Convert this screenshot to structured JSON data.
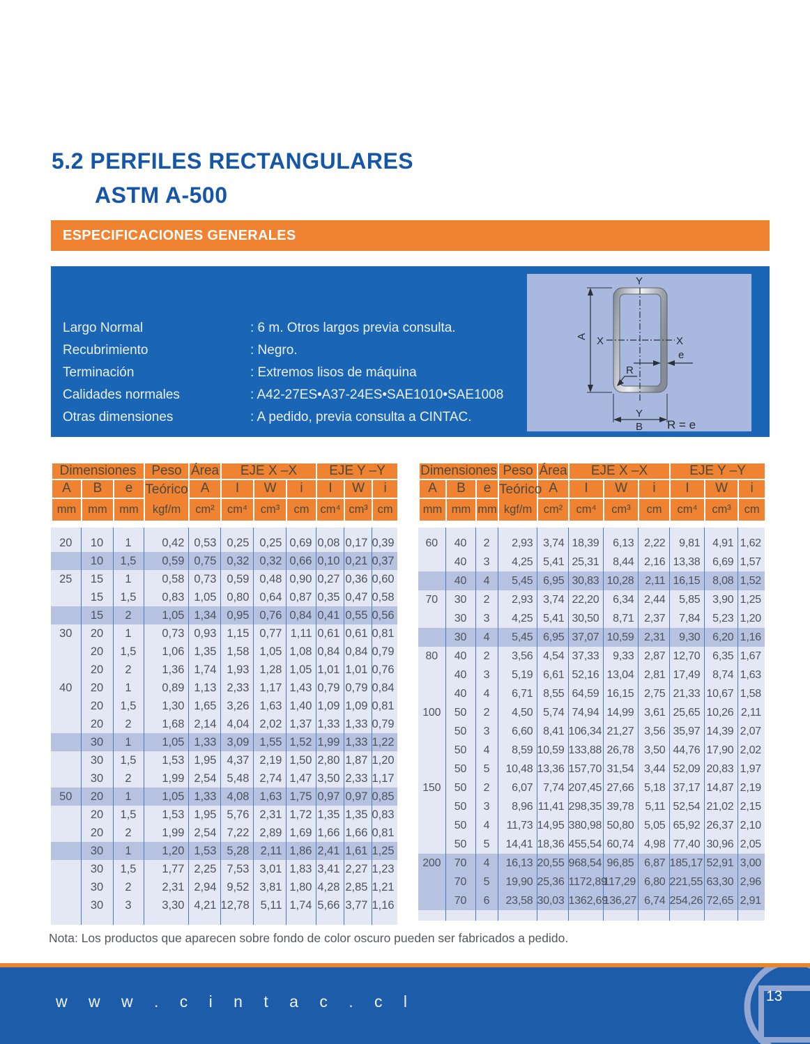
{
  "header": {
    "title_line1": "5.2 PERFILES RECTANGULARES",
    "title_line2": "ASTM A-500",
    "banner": "ESPECIFICACIONES GENERALES"
  },
  "specs": [
    {
      "label": "Largo Normal",
      "value": ": 6 m. Otros largos previa consulta."
    },
    {
      "label": "Recubrimiento",
      "value": ": Negro."
    },
    {
      "label": "Terminación",
      "value": ": Extremos lisos de  máquina"
    },
    {
      "label": "Calidades normales",
      "value": ": A42-27ES•A37-24ES•SAE1010•SAE1008"
    },
    {
      "label": "Otras dimensiones",
      "value": ": A pedido, previa consulta a CINTAC."
    }
  ],
  "diagram": {
    "label_a": "A",
    "label_b": "B",
    "label_e": "e",
    "label_r": "R",
    "label_x_left": "X",
    "label_x_right": "X",
    "label_y_top": "Y",
    "label_y_bottom": "Y",
    "formula": "R = e"
  },
  "tables": {
    "header": {
      "dimensiones": "Dimensiones",
      "peso": "Peso",
      "teorico": "Teórico",
      "area": "Área",
      "eje_x": "EJE X –X",
      "eje_y": "EJE Y –Y",
      "a": "A",
      "b": "B",
      "e": "e",
      "i_major": "I",
      "w": "W",
      "i_minor": "i",
      "mm": "mm",
      "kgf_m": "kgf/m",
      "cm2": "cm²",
      "cm4": "cm⁴",
      "cm3": "cm³",
      "cm": "cm"
    },
    "left": {
      "highlighted": [
        1,
        4,
        11,
        14,
        17
      ],
      "rows": [
        [
          "20",
          "10",
          "1",
          "0,42",
          "0,53",
          "0,25",
          "0,25",
          "0,69",
          "0,08",
          "0,17",
          "0,39"
        ],
        [
          "",
          "10",
          "1,5",
          "0,59",
          "0,75",
          "0,32",
          "0,32",
          "0,66",
          "0,10",
          "0,21",
          "0,37"
        ],
        [
          "25",
          "15",
          "1",
          "0,58",
          "0,73",
          "0,59",
          "0,48",
          "0,90",
          "0,27",
          "0,36",
          "0,60"
        ],
        [
          "",
          "15",
          "1,5",
          "0,83",
          "1,05",
          "0,80",
          "0,64",
          "0,87",
          "0,35",
          "0,47",
          "0,58"
        ],
        [
          "",
          "15",
          "2",
          "1,05",
          "1,34",
          "0,95",
          "0,76",
          "0,84",
          "0,41",
          "0,55",
          "0,56"
        ],
        [
          "30",
          "20",
          "1",
          "0,73",
          "0,93",
          "1,15",
          "0,77",
          "1,11",
          "0,61",
          "0,61",
          "0,81"
        ],
        [
          "",
          "20",
          "1,5",
          "1,06",
          "1,35",
          "1,58",
          "1,05",
          "1,08",
          "0,84",
          "0,84",
          "0,79"
        ],
        [
          "",
          "20",
          "2",
          "1,36",
          "1,74",
          "1,93",
          "1,28",
          "1,05",
          "1,01",
          "1,01",
          "0,76"
        ],
        [
          "40",
          "20",
          "1",
          "0,89",
          "1,13",
          "2,33",
          "1,17",
          "1,43",
          "0,79",
          "0,79",
          "0,84"
        ],
        [
          "",
          "20",
          "1,5",
          "1,30",
          "1,65",
          "3,26",
          "1,63",
          "1,40",
          "1,09",
          "1,09",
          "0,81"
        ],
        [
          "",
          "20",
          "2",
          "1,68",
          "2,14",
          "4,04",
          "2,02",
          "1,37",
          "1,33",
          "1,33",
          "0,79"
        ],
        [
          "",
          "30",
          "1",
          "1,05",
          "1,33",
          "3,09",
          "1,55",
          "1,52",
          "1,99",
          "1,33",
          "1,22"
        ],
        [
          "",
          "30",
          "1,5",
          "1,53",
          "1,95",
          "4,37",
          "2,19",
          "1,50",
          "2,80",
          "1,87",
          "1,20"
        ],
        [
          "",
          "30",
          "2",
          "1,99",
          "2,54",
          "5,48",
          "2,74",
          "1,47",
          "3,50",
          "2,33",
          "1,17"
        ],
        [
          "50",
          "20",
          "1",
          "1,05",
          "1,33",
          "4,08",
          "1,63",
          "1,75",
          "0,97",
          "0,97",
          "0,85"
        ],
        [
          "",
          "20",
          "1,5",
          "1,53",
          "1,95",
          "5,76",
          "2,31",
          "1,72",
          "1,35",
          "1,35",
          "0,83"
        ],
        [
          "",
          "20",
          "2",
          "1,99",
          "2,54",
          "7,22",
          "2,89",
          "1,69",
          "1,66",
          "1,66",
          "0,81"
        ],
        [
          "",
          "30",
          "1",
          "1,20",
          "1,53",
          "5,28",
          "2,11",
          "1,86",
          "2,41",
          "1,61",
          "1,25"
        ],
        [
          "",
          "30",
          "1,5",
          "1,77",
          "2,25",
          "7,53",
          "3,01",
          "1,83",
          "3,41",
          "2,27",
          "1,23"
        ],
        [
          "",
          "30",
          "2",
          "2,31",
          "2,94",
          "9,52",
          "3,81",
          "1,80",
          "4,28",
          "2,85",
          "1,21"
        ],
        [
          "",
          "30",
          "3",
          "3,30",
          "4,21",
          "12,78",
          "5,11",
          "1,74",
          "5,66",
          "3,77",
          "1,16"
        ]
      ]
    },
    "right": {
      "highlighted": [
        2,
        5,
        17,
        18,
        19
      ],
      "rows": [
        [
          "60",
          "40",
          "2",
          "2,93",
          "3,74",
          "18,39",
          "6,13",
          "2,22",
          "9,81",
          "4,91",
          "1,62"
        ],
        [
          "",
          "40",
          "3",
          "4,25",
          "5,41",
          "25,31",
          "8,44",
          "2,16",
          "13,38",
          "6,69",
          "1,57"
        ],
        [
          "",
          "40",
          "4",
          "5,45",
          "6,95",
          "30,83",
          "10,28",
          "2,11",
          "16,15",
          "8,08",
          "1,52"
        ],
        [
          "70",
          "30",
          "2",
          "2,93",
          "3,74",
          "22,20",
          "6,34",
          "2,44",
          "5,85",
          "3,90",
          "1,25"
        ],
        [
          "",
          "30",
          "3",
          "4,25",
          "5,41",
          "30,50",
          "8,71",
          "2,37",
          "7,84",
          "5,23",
          "1,20"
        ],
        [
          "",
          "30",
          "4",
          "5,45",
          "6,95",
          "37,07",
          "10,59",
          "2,31",
          "9,30",
          "6,20",
          "1,16"
        ],
        [
          "80",
          "40",
          "2",
          "3,56",
          "4,54",
          "37,33",
          "9,33",
          "2,87",
          "12,70",
          "6,35",
          "1,67"
        ],
        [
          "",
          "40",
          "3",
          "5,19",
          "6,61",
          "52,16",
          "13,04",
          "2,81",
          "17,49",
          "8,74",
          "1,63"
        ],
        [
          "",
          "40",
          "4",
          "6,71",
          "8,55",
          "64,59",
          "16,15",
          "2,75",
          "21,33",
          "10,67",
          "1,58"
        ],
        [
          "100",
          "50",
          "2",
          "4,50",
          "5,74",
          "74,94",
          "14,99",
          "3,61",
          "25,65",
          "10,26",
          "2,11"
        ],
        [
          "",
          "50",
          "3",
          "6,60",
          "8,41",
          "106,34",
          "21,27",
          "3,56",
          "35,97",
          "14,39",
          "2,07"
        ],
        [
          "",
          "50",
          "4",
          "8,59",
          "10,59",
          "133,88",
          "26,78",
          "3,50",
          "44,76",
          "17,90",
          "2,02"
        ],
        [
          "",
          "50",
          "5",
          "10,48",
          "13,36",
          "157,70",
          "31,54",
          "3,44",
          "52,09",
          "20,83",
          "1,97"
        ],
        [
          "150",
          "50",
          "2",
          "6,07",
          "7,74",
          "207,45",
          "27,66",
          "5,18",
          "37,17",
          "14,87",
          "2,19"
        ],
        [
          "",
          "50",
          "3",
          "8,96",
          "11,41",
          "298,35",
          "39,78",
          "5,11",
          "52,54",
          "21,02",
          "2,15"
        ],
        [
          "",
          "50",
          "4",
          "11,73",
          "14,95",
          "380,98",
          "50,80",
          "5,05",
          "65,92",
          "26,37",
          "2,10"
        ],
        [
          "",
          "50",
          "5",
          "14,41",
          "18,36",
          "455,54",
          "60,74",
          "4,98",
          "77,40",
          "30,96",
          "2,05"
        ],
        [
          "200",
          "70",
          "4",
          "16,13",
          "20,55",
          "968,54",
          "96,85",
          "6,87",
          "185,17",
          "52,91",
          "3,00"
        ],
        [
          "",
          "70",
          "5",
          "19,90",
          "25,36",
          "1172,89",
          "117,29",
          "6,80",
          "221,55",
          "63,30",
          "2,96"
        ],
        [
          "",
          "70",
          "6",
          "23,58",
          "30,03",
          "1362,69",
          "136,27",
          "6,74",
          "254,26",
          "72,65",
          "2,91"
        ]
      ]
    }
  },
  "note": "Nota: Los productos que aparecen sobre fondo de color oscuro pueden ser fabricados a pedido.",
  "footer": {
    "url": "w w w . c i n t a c . c l",
    "page_number": "13"
  },
  "colors": {
    "orange": "#F08332",
    "title_blue": "#1656A6",
    "panel_blue": "#1A66B4",
    "footer_blue": "#1D5CA9",
    "diagram_bg": "#A9B8DF",
    "row_light": "#E3E8F4",
    "row_highlight": "#B7C2E1",
    "grid_line": "#4C78BC"
  }
}
